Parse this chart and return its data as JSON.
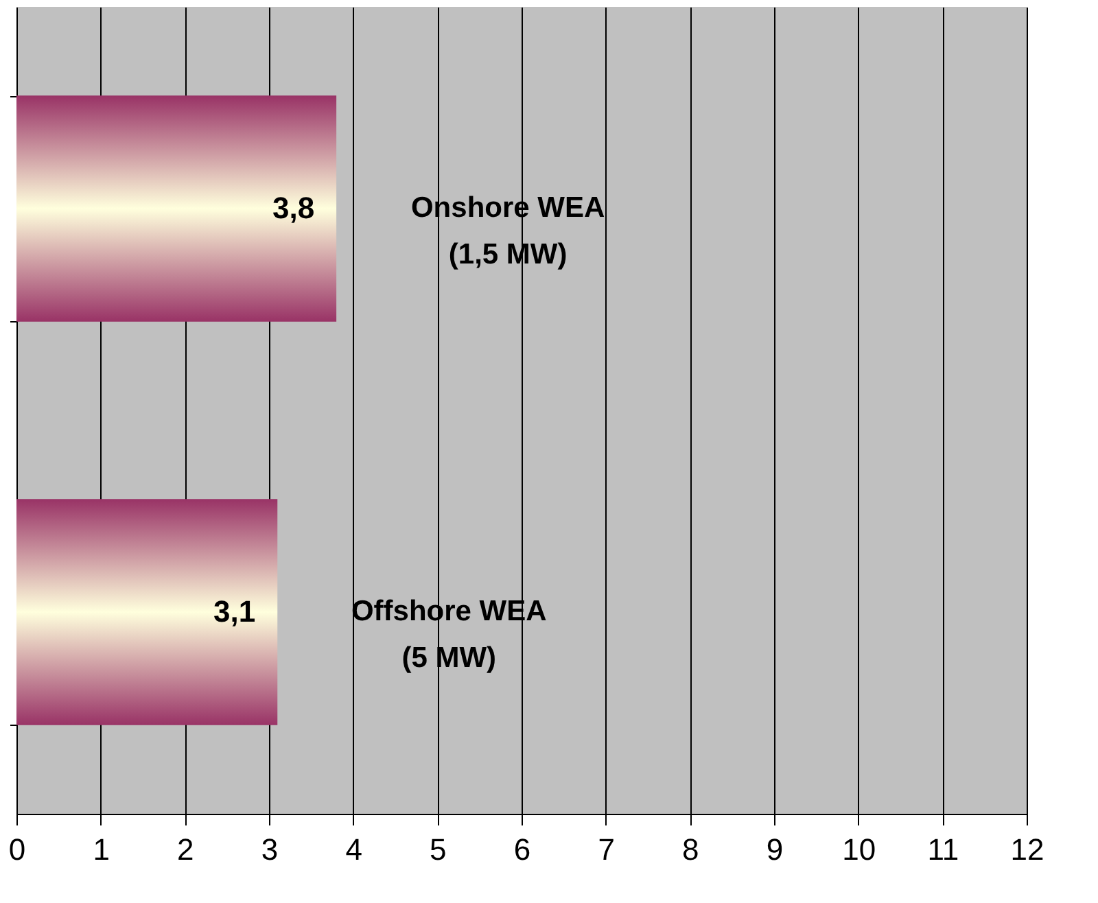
{
  "chart_data": {
    "type": "bar",
    "orientation": "horizontal",
    "categories": [
      "Onshore WEA\n(1,5 MW)",
      "Offshore WEA\n(5 MW)"
    ],
    "values": [
      3.8,
      3.1
    ],
    "value_labels": [
      "3,8",
      "3,1"
    ],
    "color": "#993366",
    "xlim": [
      0,
      12
    ],
    "xticks": [
      0,
      1,
      2,
      3,
      4,
      5,
      6,
      7,
      8,
      9,
      10,
      11,
      12
    ],
    "grid": "x"
  }
}
